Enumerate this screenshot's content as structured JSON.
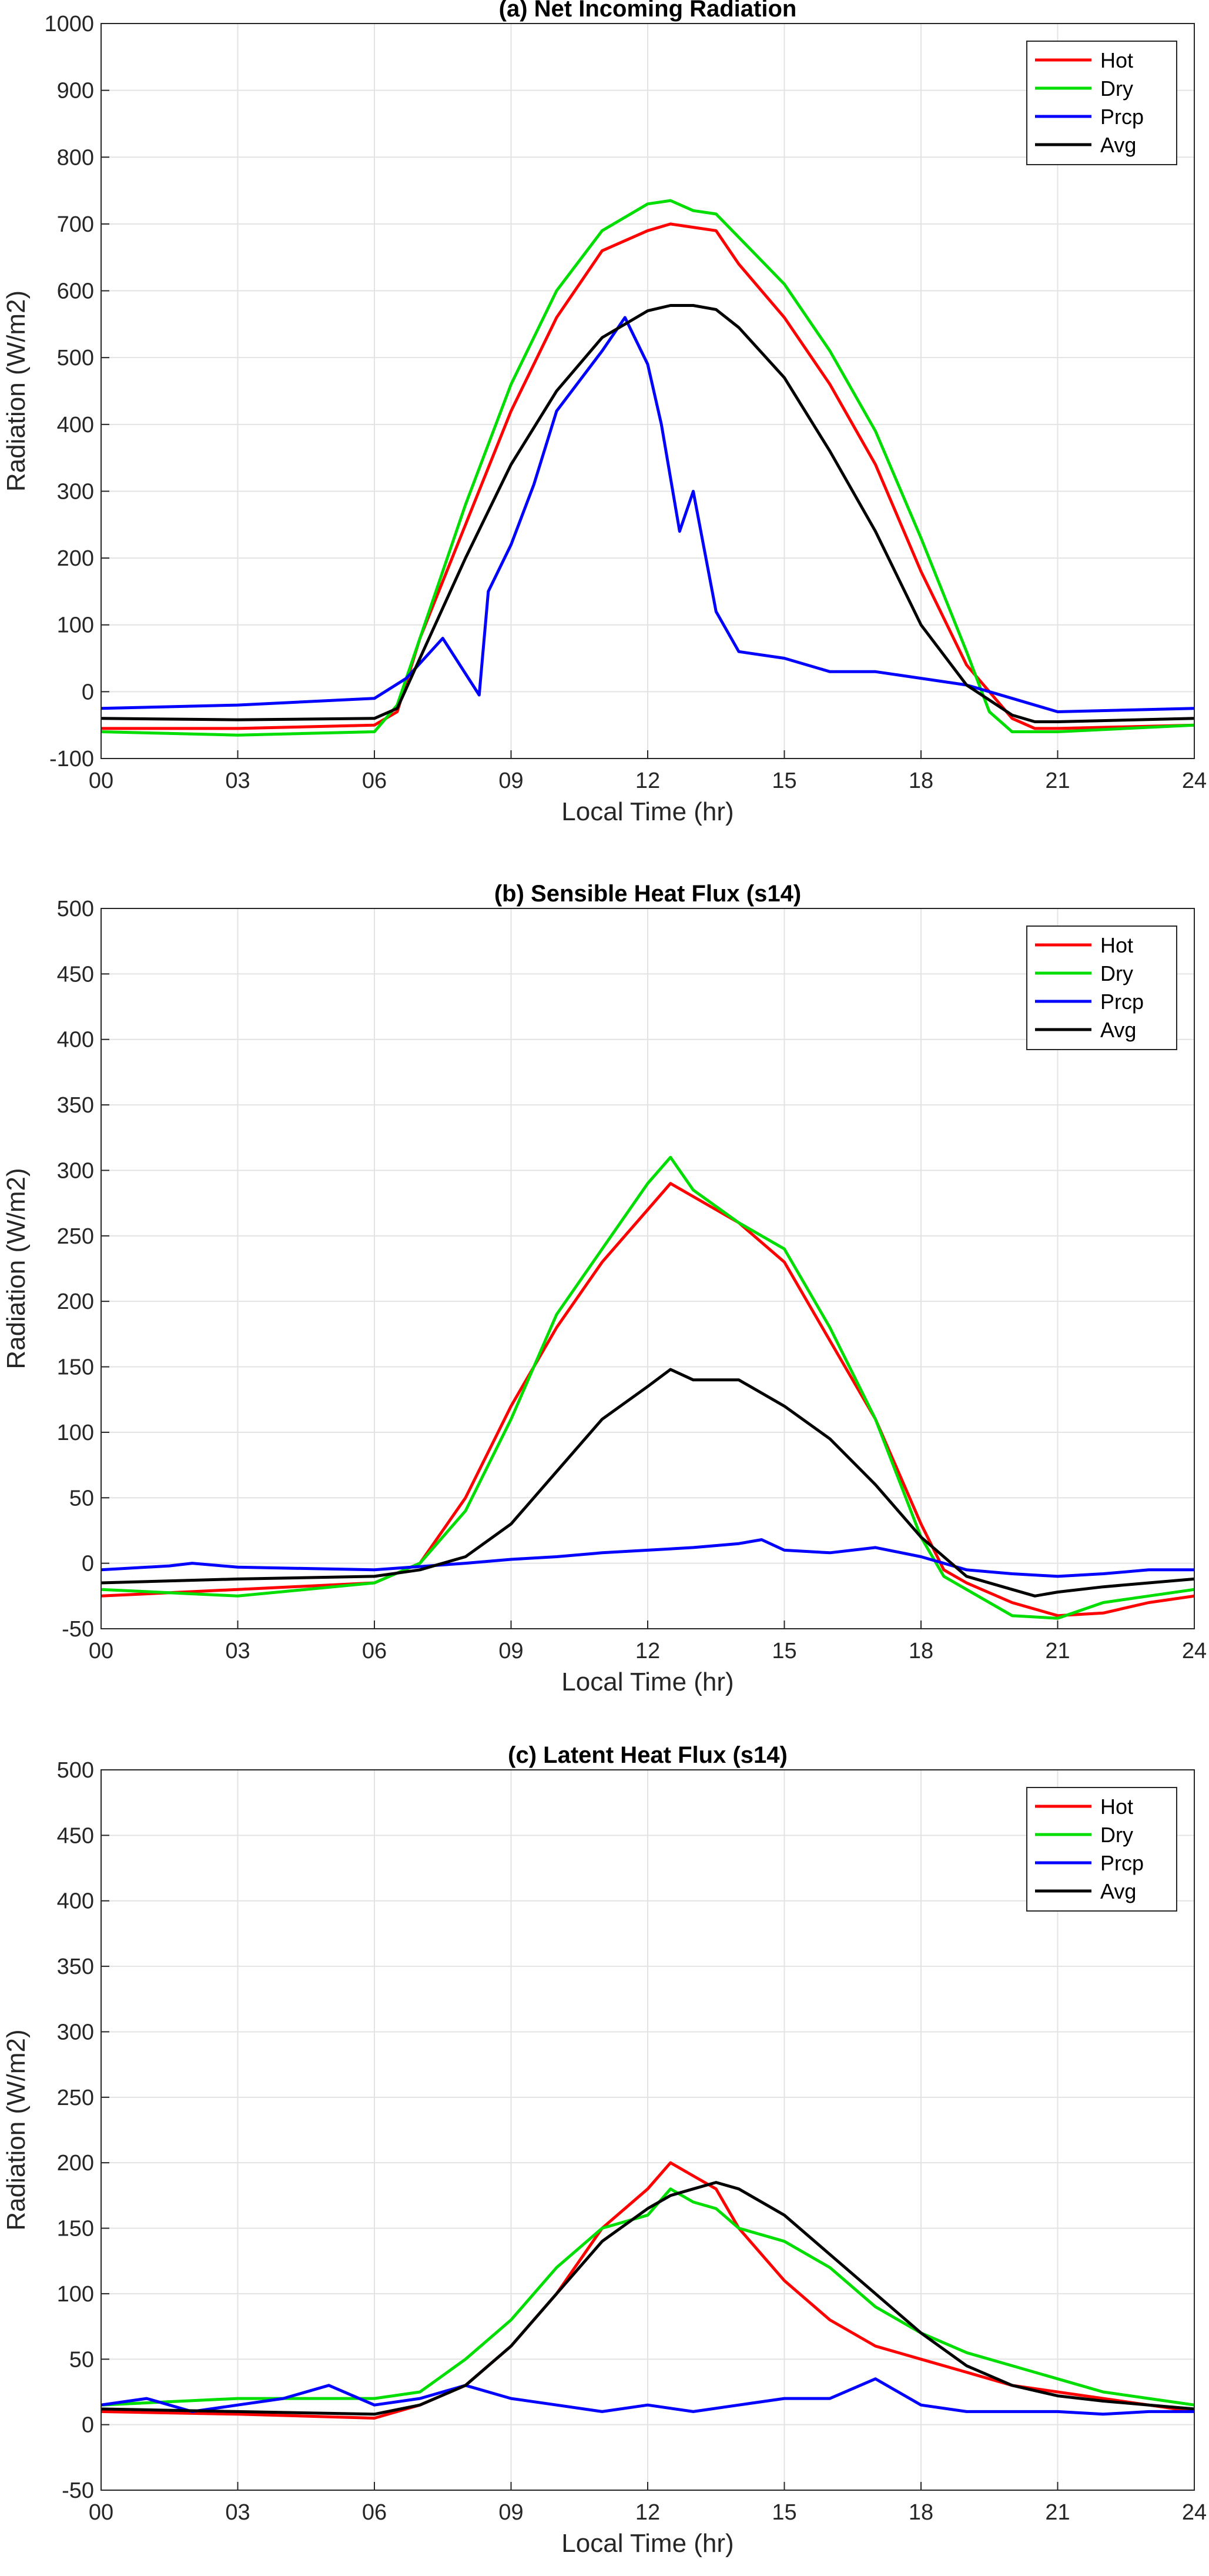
{
  "chart_data": [
    {
      "type": "line",
      "title": "(a) Net Incoming Radiation",
      "xlabel": "Local Time (hr)",
      "ylabel": "Radiation (W/m2)",
      "xlim": [
        0,
        24
      ],
      "ylim": [
        -100,
        1000
      ],
      "xticks": [
        0,
        3,
        6,
        9,
        12,
        15,
        18,
        21,
        24
      ],
      "xtick_labels": [
        "00",
        "03",
        "06",
        "09",
        "12",
        "15",
        "18",
        "21",
        "24"
      ],
      "yticks": [
        -100,
        0,
        100,
        200,
        300,
        400,
        500,
        600,
        700,
        800,
        900,
        1000
      ],
      "ytick_labels": [
        "-100",
        "0",
        "100",
        "200",
        "300",
        "400",
        "500",
        "600",
        "700",
        "800",
        "900",
        "1000"
      ],
      "grid": true,
      "legend_position": "top-right",
      "series": [
        {
          "name": "Hot",
          "color": "#ff0000",
          "x": [
            0,
            3,
            6,
            6.5,
            7,
            8,
            9,
            10,
            11,
            12,
            12.5,
            13,
            13.5,
            14,
            15,
            16,
            17,
            18,
            19,
            20,
            20.5,
            21,
            24
          ],
          "y": [
            -55,
            -55,
            -50,
            -30,
            80,
            250,
            420,
            560,
            660,
            690,
            700,
            695,
            690,
            640,
            560,
            460,
            340,
            180,
            40,
            -40,
            -55,
            -55,
            -50
          ]
        },
        {
          "name": "Dry",
          "color": "#00dd00",
          "x": [
            0,
            3,
            6,
            6.5,
            7,
            8,
            9,
            10,
            11,
            12,
            12.5,
            13,
            13.5,
            14,
            15,
            16,
            17,
            18,
            19,
            19.5,
            20,
            21,
            24
          ],
          "y": [
            -60,
            -65,
            -60,
            -20,
            80,
            280,
            460,
            600,
            690,
            730,
            735,
            720,
            715,
            680,
            610,
            510,
            390,
            230,
            60,
            -30,
            -60,
            -60,
            -50
          ]
        },
        {
          "name": "Prcp",
          "color": "#0000ff",
          "x": [
            0,
            3,
            6,
            6.7,
            7.5,
            8.3,
            8.5,
            9,
            9.5,
            10,
            11,
            11.5,
            12,
            12.3,
            12.7,
            13,
            13.5,
            14,
            15,
            16,
            17,
            18,
            19,
            20,
            21,
            24
          ],
          "y": [
            -25,
            -20,
            -10,
            20,
            80,
            -5,
            150,
            220,
            310,
            420,
            510,
            560,
            490,
            400,
            240,
            300,
            120,
            60,
            50,
            30,
            30,
            20,
            10,
            -10,
            -30,
            -25
          ]
        },
        {
          "name": "Avg",
          "color": "#000000",
          "x": [
            0,
            3,
            6,
            6.5,
            7,
            8,
            9,
            10,
            11,
            12,
            12.5,
            13,
            13.5,
            14,
            15,
            16,
            17,
            18,
            19,
            20,
            20.5,
            21,
            24
          ],
          "y": [
            -40,
            -42,
            -40,
            -25,
            50,
            200,
            340,
            450,
            530,
            570,
            578,
            578,
            572,
            545,
            470,
            360,
            240,
            100,
            10,
            -35,
            -45,
            -45,
            -40
          ]
        }
      ]
    },
    {
      "type": "line",
      "title": "(b) Sensible Heat Flux (s14)",
      "xlabel": "Local Time (hr)",
      "ylabel": "Radiation (W/m2)",
      "xlim": [
        0,
        24
      ],
      "ylim": [
        -50,
        500
      ],
      "xticks": [
        0,
        3,
        6,
        9,
        12,
        15,
        18,
        21,
        24
      ],
      "xtick_labels": [
        "00",
        "03",
        "06",
        "09",
        "12",
        "15",
        "18",
        "21",
        "24"
      ],
      "yticks": [
        -50,
        0,
        50,
        100,
        150,
        200,
        250,
        300,
        350,
        400,
        450,
        500
      ],
      "ytick_labels": [
        "-50",
        "0",
        "50",
        "100",
        "150",
        "200",
        "250",
        "300",
        "350",
        "400",
        "450",
        "500"
      ],
      "grid": true,
      "legend_position": "top-right",
      "series": [
        {
          "name": "Hot",
          "color": "#ff0000",
          "x": [
            0,
            3,
            6,
            7,
            8,
            9,
            10,
            11,
            12,
            12.5,
            13,
            14,
            15,
            16,
            17,
            18,
            18.5,
            19,
            20,
            21,
            22,
            23,
            24
          ],
          "y": [
            -25,
            -20,
            -15,
            0,
            50,
            120,
            180,
            230,
            270,
            290,
            280,
            260,
            230,
            170,
            110,
            30,
            -5,
            -15,
            -30,
            -40,
            -38,
            -30,
            -25
          ]
        },
        {
          "name": "Dry",
          "color": "#00dd00",
          "x": [
            0,
            3,
            6,
            7,
            8,
            9,
            10,
            11,
            12,
            12.5,
            13,
            14,
            15,
            16,
            17,
            18,
            18.5,
            19,
            20,
            21,
            22,
            23,
            24
          ],
          "y": [
            -20,
            -25,
            -15,
            0,
            40,
            110,
            190,
            240,
            290,
            310,
            285,
            260,
            240,
            180,
            110,
            20,
            -10,
            -20,
            -40,
            -42,
            -30,
            -25,
            -20
          ]
        },
        {
          "name": "Prcp",
          "color": "#0000ff",
          "x": [
            0,
            1.5,
            2,
            3,
            6,
            8,
            9,
            10,
            11,
            12,
            13,
            14,
            14.5,
            15,
            16,
            17,
            18,
            19,
            20,
            21,
            22,
            23,
            24
          ],
          "y": [
            -5,
            -2,
            0,
            -3,
            -5,
            0,
            3,
            5,
            8,
            10,
            12,
            15,
            18,
            10,
            8,
            12,
            5,
            -5,
            -8,
            -10,
            -8,
            -5,
            -5
          ]
        },
        {
          "name": "Avg",
          "color": "#000000",
          "x": [
            0,
            3,
            6,
            7,
            8,
            9,
            10,
            11,
            12,
            12.5,
            13,
            14,
            15,
            16,
            17,
            18,
            19,
            20,
            20.5,
            21,
            22,
            23,
            24
          ],
          "y": [
            -15,
            -12,
            -10,
            -5,
            5,
            30,
            70,
            110,
            135,
            148,
            140,
            140,
            120,
            95,
            60,
            20,
            -10,
            -20,
            -25,
            -22,
            -18,
            -15,
            -12
          ]
        }
      ]
    },
    {
      "type": "line",
      "title": "(c) Latent Heat Flux (s14)",
      "xlabel": "Local Time (hr)",
      "ylabel": "Radiation (W/m2)",
      "xlim": [
        0,
        24
      ],
      "ylim": [
        -50,
        500
      ],
      "xticks": [
        0,
        3,
        6,
        9,
        12,
        15,
        18,
        21,
        24
      ],
      "xtick_labels": [
        "00",
        "03",
        "06",
        "09",
        "12",
        "15",
        "18",
        "21",
        "24"
      ],
      "yticks": [
        -50,
        0,
        50,
        100,
        150,
        200,
        250,
        300,
        350,
        400,
        450,
        500
      ],
      "ytick_labels": [
        "-50",
        "0",
        "50",
        "100",
        "150",
        "200",
        "250",
        "300",
        "350",
        "400",
        "450",
        "500"
      ],
      "grid": true,
      "legend_position": "top-right",
      "series": [
        {
          "name": "Hot",
          "color": "#ff0000",
          "x": [
            0,
            3,
            6,
            7,
            8,
            9,
            10,
            11,
            12,
            12.5,
            13,
            13.5,
            14,
            15,
            16,
            17,
            18,
            19,
            20,
            21,
            22,
            23,
            24
          ],
          "y": [
            10,
            8,
            5,
            15,
            30,
            60,
            100,
            150,
            180,
            200,
            190,
            180,
            150,
            110,
            80,
            60,
            50,
            40,
            30,
            25,
            20,
            15,
            10
          ]
        },
        {
          "name": "Dry",
          "color": "#00dd00",
          "x": [
            0,
            3,
            6,
            7,
            8,
            9,
            10,
            11,
            12,
            12.5,
            13,
            13.5,
            14,
            15,
            16,
            17,
            18,
            19,
            20,
            21,
            22,
            23,
            24
          ],
          "y": [
            15,
            20,
            20,
            25,
            50,
            80,
            120,
            150,
            160,
            180,
            170,
            165,
            150,
            140,
            120,
            90,
            70,
            55,
            45,
            35,
            25,
            20,
            15
          ]
        },
        {
          "name": "Prcp",
          "color": "#0000ff",
          "x": [
            0,
            1,
            2,
            3,
            4,
            5,
            6,
            7,
            8,
            9,
            10,
            11,
            12,
            13,
            14,
            15,
            16,
            17,
            18,
            19,
            20,
            21,
            22,
            23,
            24
          ],
          "y": [
            15,
            20,
            10,
            15,
            20,
            30,
            15,
            20,
            30,
            20,
            15,
            10,
            15,
            10,
            15,
            20,
            20,
            35,
            15,
            10,
            10,
            10,
            8,
            10,
            10
          ]
        },
        {
          "name": "Avg",
          "color": "#000000",
          "x": [
            0,
            3,
            6,
            7,
            8,
            9,
            10,
            11,
            12,
            12.5,
            13,
            13.5,
            14,
            15,
            16,
            17,
            18,
            19,
            20,
            21,
            22,
            23,
            24
          ],
          "y": [
            12,
            10,
            8,
            15,
            30,
            60,
            100,
            140,
            165,
            175,
            180,
            185,
            180,
            160,
            130,
            100,
            70,
            45,
            30,
            22,
            18,
            15,
            12
          ]
        }
      ]
    }
  ]
}
